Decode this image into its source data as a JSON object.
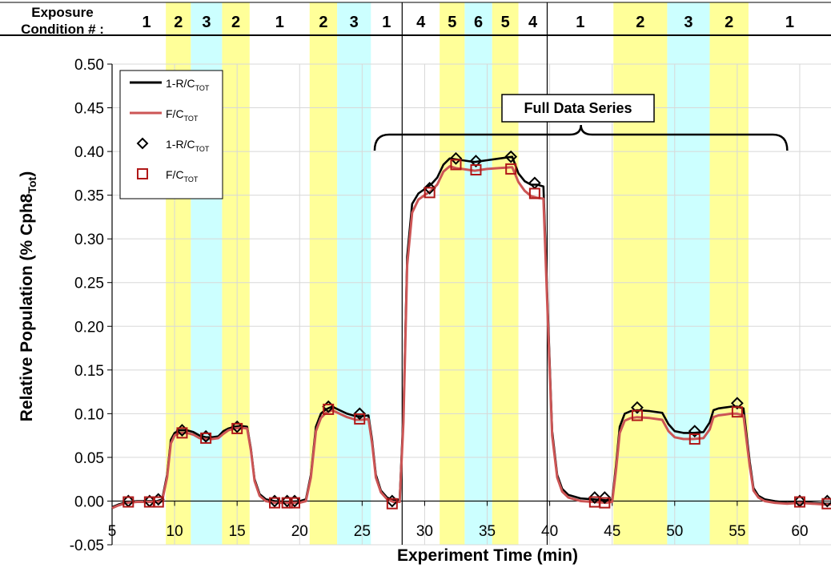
{
  "chart_data": {
    "type": "line",
    "title": "",
    "header": {
      "line1": "Exposure",
      "line2": "Condition # :"
    },
    "xlabel": "Experiment Time (min)",
    "ylabel": {
      "main": "Relative Population (% Cph8",
      "sub": "Tot",
      "close": ")"
    },
    "xlim": [
      5,
      62.5
    ],
    "ylim": [
      -0.05,
      0.5
    ],
    "xticks": [
      5,
      10,
      15,
      20,
      25,
      30,
      35,
      40,
      45,
      50,
      55,
      60
    ],
    "yticks": [
      "-0.05",
      "0.00",
      "0.05",
      "0.10",
      "0.15",
      "0.20",
      "0.25",
      "0.30",
      "0.35",
      "0.40",
      "0.45",
      "0.50"
    ],
    "grid": true,
    "legend_position": "top-left",
    "colors": {
      "black": "#000000",
      "red": "#cc5555",
      "marker_red": "#b01818",
      "yellow": "#ffff99",
      "cyan": "#ccffff"
    },
    "dividers_x": [
      28.2,
      39.8
    ],
    "condition_bands": [
      {
        "start": 5,
        "end": 9.3,
        "condition": "1",
        "color": "white"
      },
      {
        "start": 9.3,
        "end": 11.3,
        "condition": "2",
        "color": "yellow"
      },
      {
        "start": 11.3,
        "end": 13.8,
        "condition": "3",
        "color": "cyan"
      },
      {
        "start": 13.8,
        "end": 16.0,
        "condition": "2",
        "color": "yellow"
      },
      {
        "start": 16.0,
        "end": 20.8,
        "condition": "1",
        "color": "white"
      },
      {
        "start": 20.8,
        "end": 23.0,
        "condition": "2",
        "color": "yellow"
      },
      {
        "start": 23.0,
        "end": 25.7,
        "condition": "3",
        "color": "cyan"
      },
      {
        "start": 25.7,
        "end": 28.2,
        "condition": "1",
        "color": "white"
      },
      {
        "start": 28.2,
        "end": 31.2,
        "condition": "4",
        "color": "white"
      },
      {
        "start": 31.2,
        "end": 33.2,
        "condition": "5",
        "color": "yellow"
      },
      {
        "start": 33.2,
        "end": 35.4,
        "condition": "6",
        "color": "cyan"
      },
      {
        "start": 35.4,
        "end": 37.5,
        "condition": "5",
        "color": "yellow"
      },
      {
        "start": 37.5,
        "end": 39.8,
        "condition": "4",
        "color": "white"
      },
      {
        "start": 39.8,
        "end": 45.1,
        "condition": "1",
        "color": "white"
      },
      {
        "start": 45.1,
        "end": 49.4,
        "condition": "2",
        "color": "yellow"
      },
      {
        "start": 49.4,
        "end": 52.8,
        "condition": "3",
        "color": "cyan"
      },
      {
        "start": 52.8,
        "end": 55.9,
        "condition": "2",
        "color": "yellow"
      },
      {
        "start": 55.9,
        "end": 62.5,
        "condition": "1",
        "color": "white"
      }
    ],
    "annotation": {
      "text": "Full Data Series",
      "x_start": 26.0,
      "x_end": 59.0,
      "y": 0.385
    },
    "legend": [
      {
        "main": "1-R/C",
        "sub": "TOT",
        "type": "line",
        "color": "#000000"
      },
      {
        "main": "F/C",
        "sub": "TOT",
        "type": "line",
        "color": "#cc5555"
      },
      {
        "main": "1-R/C",
        "sub": "TOT",
        "type": "diamond",
        "color": "#000000"
      },
      {
        "main": "F/C",
        "sub": "TOT",
        "type": "square",
        "color": "#b01818"
      }
    ],
    "series": [
      {
        "kind": "line",
        "x": [
          4.8,
          5.5,
          6.2,
          7.0,
          7.8,
          8.6,
          9.0,
          9.4,
          9.7,
          10.0,
          10.4,
          11.0,
          11.5,
          12.0,
          12.5,
          13.0,
          13.5,
          13.9,
          14.3,
          14.8,
          15.3,
          15.8,
          16.1,
          16.4,
          16.8,
          17.3,
          18.0,
          19.0,
          20.0,
          20.5,
          20.9,
          21.3,
          21.7,
          22.1,
          22.6,
          23.2,
          23.8,
          24.5,
          25.0,
          25.5,
          25.8,
          26.1,
          26.5,
          27.0,
          27.5,
          28.0,
          28.3,
          28.6,
          29.0,
          29.5,
          30.0,
          30.5,
          31.0,
          31.5,
          32.0,
          32.5,
          33.0,
          33.5,
          34.0,
          35.0,
          36.0,
          37.0,
          37.5,
          38.0,
          38.5,
          39.0,
          39.5,
          39.9,
          40.2,
          40.6,
          41.0,
          41.5,
          42.5,
          43.5,
          44.5,
          45.0,
          45.3,
          45.6,
          46.0,
          46.5,
          47.0,
          48.0,
          49.0,
          49.5,
          50.0,
          50.7,
          51.5,
          52.3,
          52.8,
          53.1,
          53.5,
          54.0,
          54.5,
          55.0,
          55.5,
          56.0,
          56.3,
          56.7,
          57.2,
          58.0,
          59.0,
          60.0,
          61.0,
          62.0,
          62.5
        ],
        "values": [
          -0.007,
          -0.004,
          -0.001,
          0.0,
          0.0,
          0.0,
          0.002,
          0.03,
          0.07,
          0.078,
          0.081,
          0.081,
          0.079,
          0.075,
          0.073,
          0.073,
          0.074,
          0.08,
          0.083,
          0.085,
          0.086,
          0.085,
          0.06,
          0.025,
          0.008,
          0.002,
          0.0,
          -0.001,
          0.0,
          0.002,
          0.03,
          0.085,
          0.1,
          0.105,
          0.108,
          0.104,
          0.1,
          0.097,
          0.097,
          0.098,
          0.07,
          0.03,
          0.012,
          0.004,
          0.001,
          0.002,
          0.1,
          0.28,
          0.34,
          0.352,
          0.357,
          0.362,
          0.37,
          0.385,
          0.392,
          0.391,
          0.39,
          0.389,
          0.388,
          0.39,
          0.392,
          0.394,
          0.375,
          0.366,
          0.362,
          0.362,
          0.36,
          0.2,
          0.08,
          0.03,
          0.014,
          0.007,
          0.003,
          0.002,
          0.001,
          0.002,
          0.04,
          0.085,
          0.1,
          0.103,
          0.104,
          0.103,
          0.101,
          0.088,
          0.08,
          0.078,
          0.078,
          0.079,
          0.09,
          0.104,
          0.106,
          0.107,
          0.108,
          0.108,
          0.106,
          0.045,
          0.015,
          0.006,
          0.002,
          0.0,
          -0.002,
          -0.001,
          -0.002,
          -0.003,
          -0.003
        ],
        "color": "#000000"
      },
      {
        "kind": "line",
        "x": [
          4.8,
          5.5,
          6.2,
          7.0,
          7.8,
          8.6,
          9.0,
          9.4,
          9.7,
          10.0,
          10.4,
          11.0,
          11.5,
          12.0,
          12.5,
          13.0,
          13.5,
          13.9,
          14.3,
          14.8,
          15.3,
          15.8,
          16.1,
          16.4,
          16.8,
          17.3,
          18.0,
          19.0,
          20.0,
          20.5,
          20.9,
          21.3,
          21.7,
          22.1,
          22.6,
          23.2,
          23.8,
          24.5,
          25.0,
          25.5,
          25.8,
          26.1,
          26.5,
          27.0,
          27.5,
          28.0,
          28.3,
          28.6,
          29.0,
          29.5,
          30.0,
          30.5,
          31.0,
          31.5,
          32.0,
          32.5,
          33.0,
          33.5,
          34.0,
          35.0,
          36.0,
          37.0,
          37.5,
          38.0,
          38.5,
          39.0,
          39.5,
          39.9,
          40.2,
          40.6,
          41.0,
          41.5,
          42.5,
          43.5,
          44.5,
          45.0,
          45.3,
          45.6,
          46.0,
          46.5,
          47.0,
          48.0,
          49.0,
          49.5,
          50.0,
          50.7,
          51.5,
          52.3,
          52.8,
          53.1,
          53.5,
          54.0,
          54.5,
          55.0,
          55.5,
          56.0,
          56.3,
          56.7,
          57.2,
          58.0,
          59.0,
          60.0,
          61.0,
          62.0,
          62.5
        ],
        "values": [
          -0.008,
          -0.005,
          -0.002,
          -0.001,
          -0.001,
          -0.001,
          0.0,
          0.027,
          0.066,
          0.075,
          0.078,
          0.078,
          0.076,
          0.072,
          0.071,
          0.071,
          0.072,
          0.077,
          0.081,
          0.083,
          0.084,
          0.083,
          0.058,
          0.023,
          0.006,
          0.0,
          -0.002,
          -0.002,
          -0.002,
          0.0,
          0.027,
          0.08,
          0.095,
          0.101,
          0.104,
          0.1,
          0.096,
          0.093,
          0.093,
          0.094,
          0.066,
          0.027,
          0.01,
          0.002,
          -0.001,
          -0.001,
          0.09,
          0.27,
          0.33,
          0.345,
          0.35,
          0.355,
          0.362,
          0.377,
          0.383,
          0.381,
          0.38,
          0.379,
          0.378,
          0.38,
          0.381,
          0.382,
          0.365,
          0.355,
          0.349,
          0.347,
          0.346,
          0.19,
          0.075,
          0.027,
          0.011,
          0.004,
          0.0,
          -0.001,
          -0.002,
          -0.001,
          0.035,
          0.078,
          0.092,
          0.095,
          0.096,
          0.095,
          0.093,
          0.08,
          0.073,
          0.071,
          0.071,
          0.072,
          0.082,
          0.096,
          0.098,
          0.099,
          0.1,
          0.1,
          0.098,
          0.04,
          0.012,
          0.004,
          0.0,
          -0.002,
          -0.003,
          -0.002,
          -0.003,
          -0.004,
          -0.004
        ],
        "color": "#cc5555"
      },
      {
        "kind": "markers",
        "marker": "diamond",
        "x": [
          6.3,
          8.0,
          8.7,
          10.6,
          12.5,
          15.0,
          18.0,
          19.0,
          19.6,
          22.3,
          24.8,
          27.4,
          30.4,
          32.5,
          34.1,
          36.9,
          38.8,
          43.6,
          44.4,
          47.0,
          51.6,
          55.0,
          60.0,
          62.2
        ],
        "values": [
          0.0,
          0.0,
          0.002,
          0.081,
          0.074,
          0.085,
          0.0,
          0.0,
          0.0,
          0.108,
          0.1,
          0.0,
          0.358,
          0.392,
          0.389,
          0.394,
          0.364,
          0.004,
          0.004,
          0.107,
          0.08,
          0.112,
          0.0,
          0.0
        ],
        "color": "#000000"
      },
      {
        "kind": "markers",
        "marker": "square",
        "x": [
          6.3,
          8.0,
          8.7,
          10.6,
          12.5,
          15.0,
          18.0,
          19.0,
          19.6,
          22.3,
          24.8,
          27.4,
          30.4,
          32.5,
          34.1,
          36.9,
          38.8,
          43.6,
          44.4,
          47.0,
          51.6,
          55.0,
          60.0,
          62.2
        ],
        "values": [
          -0.001,
          -0.001,
          -0.001,
          0.078,
          0.072,
          0.083,
          -0.002,
          -0.002,
          -0.002,
          0.105,
          0.094,
          -0.003,
          0.353,
          0.385,
          0.379,
          0.38,
          0.352,
          -0.001,
          -0.002,
          0.098,
          0.071,
          0.102,
          -0.001,
          -0.003
        ],
        "color": "#b01818"
      }
    ]
  }
}
